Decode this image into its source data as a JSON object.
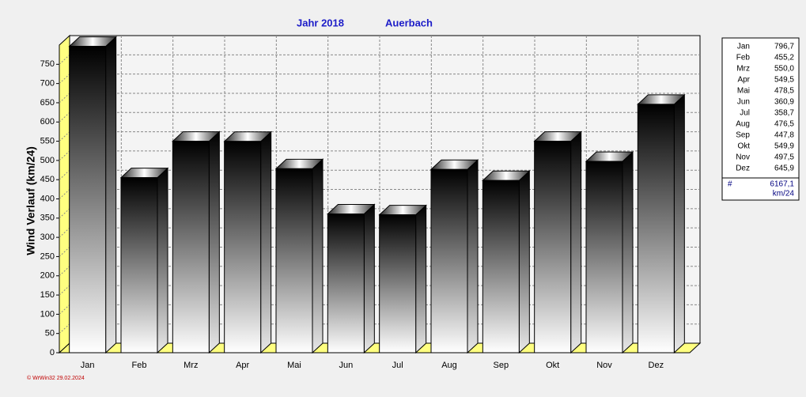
{
  "chart_data": {
    "type": "bar3d",
    "title": "Jahr  2018",
    "subtitle": "Auerbach",
    "y_label": "Wind Verlauf  (km/24)",
    "categories": [
      "Jan",
      "Feb",
      "Mrz",
      "Apr",
      "Mai",
      "Jun",
      "Jul",
      "Aug",
      "Sep",
      "Okt",
      "Nov",
      "Dez"
    ],
    "values": [
      796.7,
      455.2,
      550.0,
      549.5,
      478.5,
      360.9,
      358.7,
      476.5,
      447.8,
      549.9,
      497.5,
      645.9
    ],
    "value_labels": [
      "796,7",
      "455,2",
      "550,0",
      "549,5",
      "478,5",
      "360,9",
      "358,7",
      "476,5",
      "447,8",
      "549,9",
      "497,5",
      "645,9"
    ],
    "ylim": [
      0,
      800
    ],
    "yticks": [
      0,
      50,
      100,
      150,
      200,
      250,
      300,
      350,
      400,
      450,
      500,
      550,
      600,
      650,
      700,
      750
    ],
    "grid": true,
    "summary": {
      "symbol": "#",
      "total": "6167,1",
      "unit": "km/24"
    },
    "footer": "© WrWin32  29.02.2024"
  }
}
